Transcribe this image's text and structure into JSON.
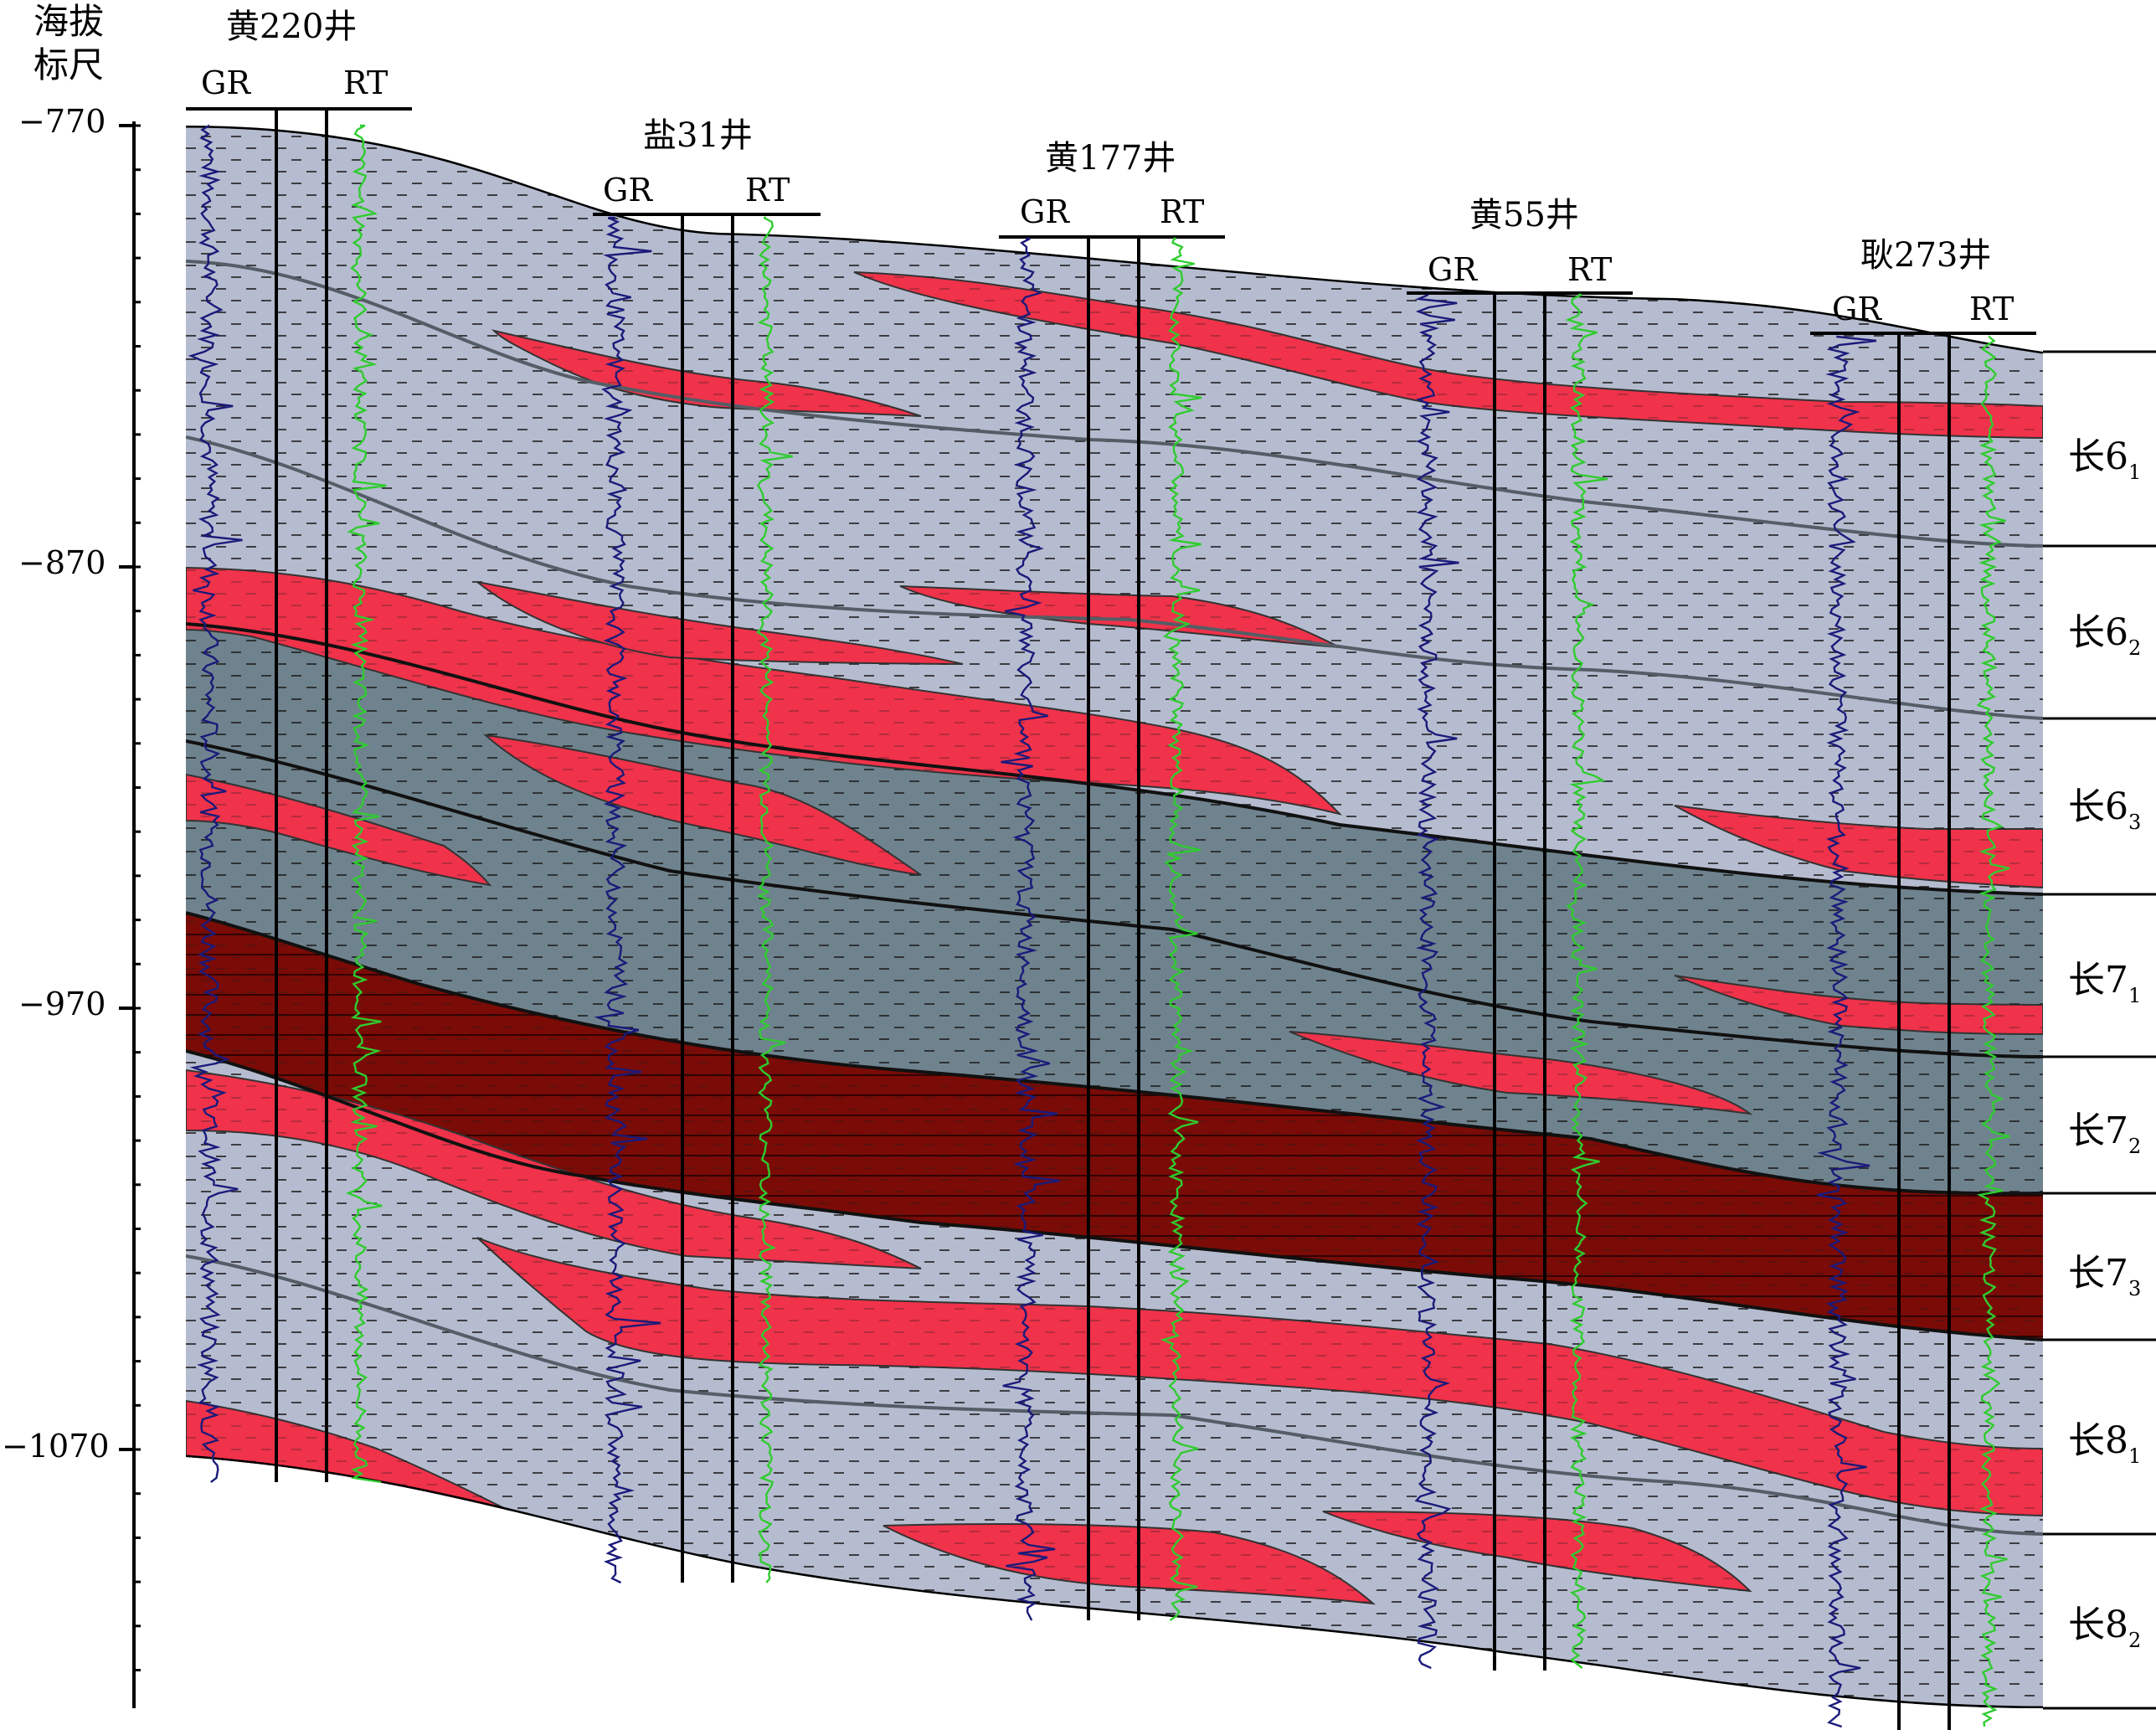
{
  "scale": {
    "title_line1": "海拔",
    "title_line2": "标尺",
    "labels": [
      "−770",
      "−870",
      "−970",
      "−1070"
    ]
  },
  "wells": [
    {
      "name": "黄220井",
      "gr": "GR",
      "rt": "RT"
    },
    {
      "name": "盐31井",
      "gr": "GR",
      "rt": "RT"
    },
    {
      "name": "黄177井",
      "gr": "GR",
      "rt": "RT"
    },
    {
      "name": "黄55井",
      "gr": "GR",
      "rt": "RT"
    },
    {
      "name": "耿273井",
      "gr": "GR",
      "rt": "RT"
    }
  ],
  "layers": [
    {
      "base": "长6",
      "sub": "1"
    },
    {
      "base": "长6",
      "sub": "2"
    },
    {
      "base": "长6",
      "sub": "3"
    },
    {
      "base": "长7",
      "sub": "1"
    },
    {
      "base": "长7",
      "sub": "2"
    },
    {
      "base": "长7",
      "sub": "3"
    },
    {
      "base": "长8",
      "sub": "1"
    },
    {
      "base": "长8",
      "sub": "2"
    }
  ],
  "colors": {
    "light_mudstone": "#b6bccf",
    "dark_mudstone": "#6f838e",
    "oil_shale": "#7a0b06",
    "sand_body": "#f0324a",
    "gr_curve": "#1a1a7a",
    "rt_curve": "#2fcc2f"
  }
}
